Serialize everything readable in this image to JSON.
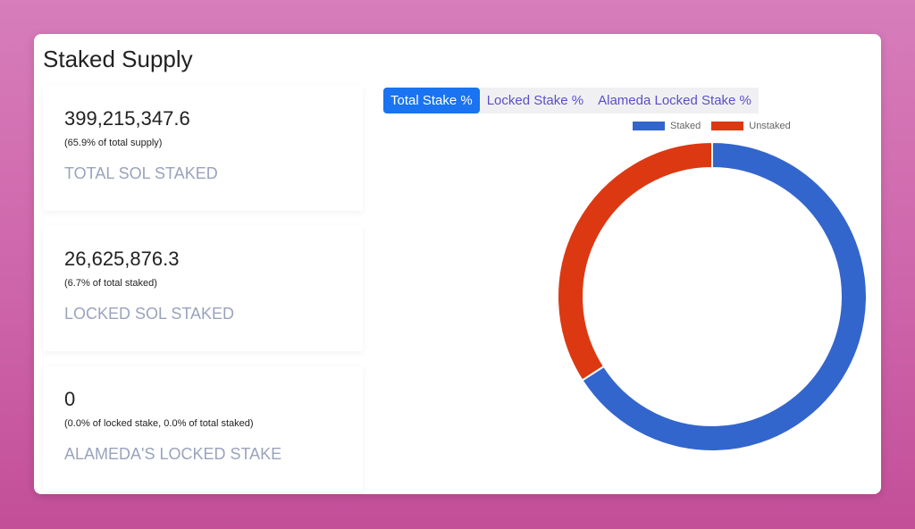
{
  "title": "Staked Supply",
  "stats": [
    {
      "value": "399,215,347.6",
      "sub": "(65.9% of total supply)",
      "label": "TOTAL SOL STAKED"
    },
    {
      "value": "26,625,876.3",
      "sub": "(6.7% of total staked)",
      "label": "LOCKED SOL STAKED"
    },
    {
      "value": "0",
      "sub": "(0.0% of locked stake, 0.0% of total staked)",
      "label": "ALAMEDA'S LOCKED STAKE"
    }
  ],
  "tabs": [
    {
      "label": "Total Stake %",
      "active": true
    },
    {
      "label": "Locked Stake %"
    },
    {
      "label": "Alameda Locked Stake %"
    }
  ],
  "chart_data": {
    "type": "pie",
    "variant": "doughnut",
    "categories": [
      "Staked",
      "Unstaked"
    ],
    "values": [
      65.9,
      34.1
    ],
    "colors": [
      "#3366cc",
      "#dc3912"
    ],
    "legend": "top"
  }
}
